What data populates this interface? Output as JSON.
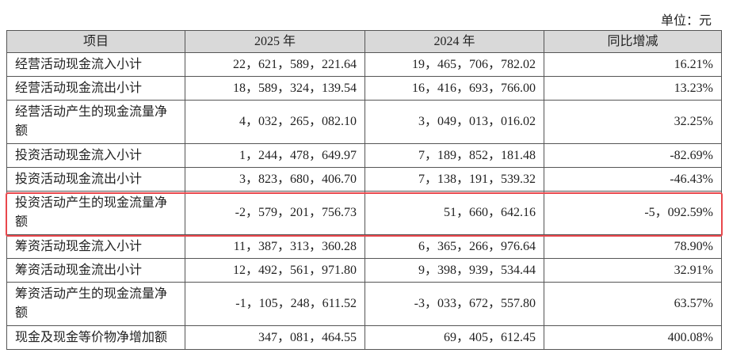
{
  "header": {
    "unit": "单位：元"
  },
  "table": {
    "columns": [
      "项目",
      "2025 年",
      "2024 年",
      "同比增减"
    ],
    "rows": [
      [
        "经营活动现金流入小计",
        "22，621，589，221.64",
        "19，465，706，782.02",
        "16.21%"
      ],
      [
        "经营活动现金流出小计",
        "18，589，324，139.54",
        "16，416，693，766.00",
        "13.23%"
      ],
      [
        "经营活动产生的现金流量净额",
        "4，032，265，082.10",
        "3，049，013，016.02",
        "32.25%"
      ],
      [
        "投资活动现金流入小计",
        "1，244，478，649.97",
        "7，189，852，181.48",
        "-82.69%"
      ],
      [
        "投资活动现金流出小计",
        "3，823，680，406.70",
        "7，138，191，539.32",
        "-46.43%"
      ],
      [
        "投资活动产生的现金流量净额",
        "-2，579，201，756.73",
        "51，660，642.16",
        "-5，092.59%"
      ],
      [
        "筹资活动现金流入小计",
        "11，387，313，360.28",
        "6，365，266，976.64",
        "78.90%"
      ],
      [
        "筹资活动现金流出小计",
        "12，492，561，971.80",
        "9，398，939，534.44",
        "32.91%"
      ],
      [
        "筹资活动产生的现金流量净额",
        "-1，105，248，611.52",
        "-3，033，672，557.80",
        "63.57%"
      ],
      [
        "现金及现金等价物净增加额",
        "347，081，464.55",
        "69，405，612.45",
        "400.08%"
      ]
    ]
  }
}
